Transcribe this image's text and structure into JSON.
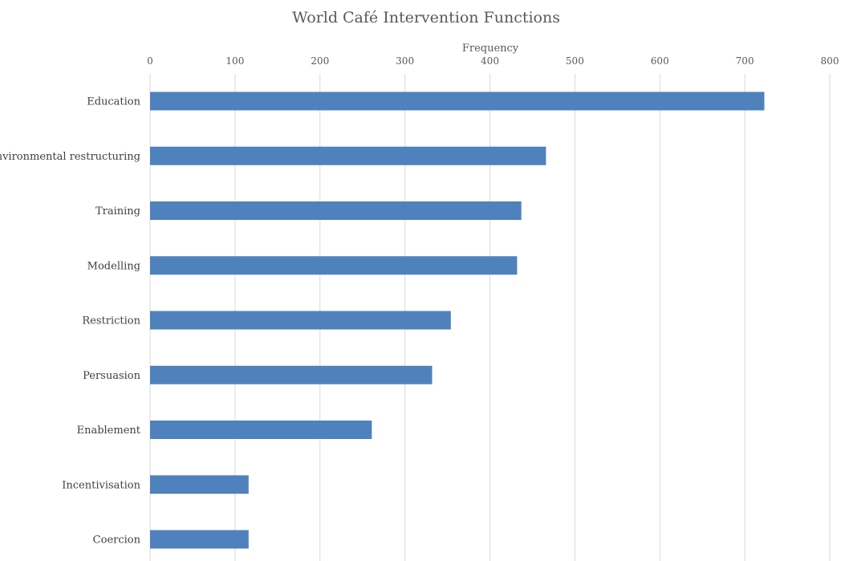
{
  "chart_data": {
    "type": "bar",
    "orientation": "horizontal",
    "title": "World Café Intervention Functions",
    "xlabel": "Frequency",
    "ylabel": "",
    "xlim": [
      0,
      800
    ],
    "x_ticks": [
      0,
      100,
      200,
      300,
      400,
      500,
      600,
      700,
      800
    ],
    "x_axis_position": "top",
    "grid": true,
    "bar_color": "#4f81bd",
    "categories": [
      "Education",
      "Environmental restructuring",
      "Training",
      "Modelling",
      "Restriction",
      "Persuasion",
      "Enablement",
      "Incentivisation",
      "Coercion"
    ],
    "values": [
      723,
      466,
      437,
      432,
      354,
      332,
      261,
      116,
      116
    ]
  }
}
